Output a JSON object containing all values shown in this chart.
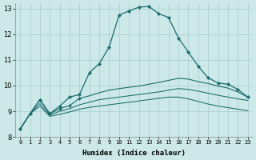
{
  "xlabel": "Humidex (Indice chaleur)",
  "ylabel": "",
  "background_color": "#cce8e8",
  "grid_color": "#a8cccc",
  "line_color": "#1a6b6b",
  "xlim": [
    -0.5,
    23.5
  ],
  "ylim": [
    8.0,
    13.2
  ],
  "yticks": [
    8,
    9,
    10,
    11,
    12,
    13
  ],
  "line1_x": [
    0,
    1,
    2,
    3,
    4,
    5,
    6,
    7,
    8,
    9,
    10,
    11,
    12,
    13,
    14,
    15,
    16,
    17,
    18,
    19,
    20,
    21,
    22,
    23
  ],
  "line1_y": [
    8.3,
    8.9,
    9.45,
    8.9,
    9.2,
    9.55,
    9.65,
    10.5,
    10.85,
    11.5,
    12.75,
    12.9,
    13.05,
    13.08,
    12.8,
    12.65,
    11.85,
    11.3,
    10.75,
    10.3,
    10.1,
    10.05,
    9.85,
    9.55
  ],
  "line1_markers": [
    0,
    1,
    2,
    3,
    4,
    5,
    6,
    7,
    8,
    9,
    10,
    11,
    12,
    13,
    14,
    15,
    16,
    17,
    18,
    19,
    20,
    21,
    22,
    23
  ],
  "line2_x": [
    0,
    1,
    2,
    3,
    4,
    5,
    6,
    7,
    8,
    9,
    10,
    11,
    12,
    13,
    14,
    15,
    16,
    17,
    18,
    19,
    20,
    21,
    22,
    23
  ],
  "line2_y": [
    8.3,
    8.9,
    9.45,
    8.9,
    9.1,
    9.22,
    9.5,
    9.6,
    9.72,
    9.82,
    9.88,
    9.93,
    9.98,
    10.05,
    10.12,
    10.2,
    10.28,
    10.25,
    10.15,
    10.08,
    9.98,
    9.9,
    9.75,
    9.55
  ],
  "line2_markers": [
    0,
    1,
    2,
    3,
    4,
    5,
    6
  ],
  "line3_x": [
    0,
    1,
    2,
    3,
    4,
    5,
    6,
    7,
    8,
    9,
    10,
    11,
    12,
    13,
    14,
    15,
    16,
    17,
    18,
    19,
    20,
    21,
    22,
    23
  ],
  "line3_y": [
    8.3,
    8.9,
    9.3,
    8.85,
    9.0,
    9.1,
    9.25,
    9.35,
    9.45,
    9.5,
    9.55,
    9.6,
    9.65,
    9.7,
    9.75,
    9.82,
    9.88,
    9.85,
    9.78,
    9.7,
    9.62,
    9.55,
    9.48,
    9.42
  ],
  "line4_x": [
    0,
    1,
    2,
    3,
    4,
    5,
    6,
    7,
    8,
    9,
    10,
    11,
    12,
    13,
    14,
    15,
    16,
    17,
    18,
    19,
    20,
    21,
    22,
    23
  ],
  "line4_y": [
    8.3,
    8.9,
    9.2,
    8.8,
    8.88,
    8.97,
    9.08,
    9.15,
    9.2,
    9.25,
    9.3,
    9.35,
    9.4,
    9.45,
    9.5,
    9.55,
    9.55,
    9.48,
    9.38,
    9.28,
    9.2,
    9.14,
    9.08,
    9.02
  ]
}
